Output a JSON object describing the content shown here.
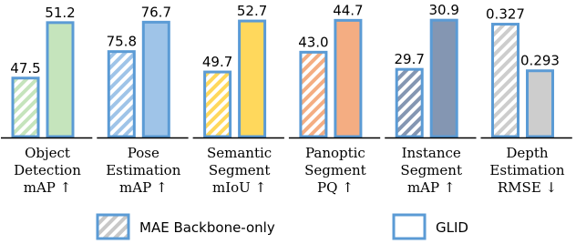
{
  "chart_data": [
    {
      "type": "bar",
      "title": [
        "Object",
        "Detection",
        "mAP ↑"
      ],
      "values": [
        47.5,
        51.2
      ],
      "value_labels": [
        "47.5",
        "51.2"
      ],
      "color": "#c5e4bc",
      "ylim": [
        43.6,
        52.1
      ]
    },
    {
      "type": "bar",
      "title": [
        "Pose",
        "Estimation",
        "mAP ↑"
      ],
      "values": [
        75.8,
        76.7
      ],
      "value_labels": [
        "75.8",
        "76.7"
      ],
      "color": "#9fc4e8",
      "ylim": [
        73.2,
        77.1
      ]
    },
    {
      "type": "bar",
      "title": [
        "Semantic",
        "Segment",
        "mIoU ↑"
      ],
      "values": [
        49.7,
        52.7
      ],
      "value_labels": [
        "49.7",
        "52.7"
      ],
      "color": "#ffd85c",
      "ylim": [
        45.9,
        53.4
      ]
    },
    {
      "type": "bar",
      "title": [
        "Panoptic",
        "Segment",
        "PQ ↑"
      ],
      "values": [
        43.0,
        44.7
      ],
      "value_labels": [
        "43.0",
        "44.7"
      ],
      "color": "#f4ad82",
      "ylim": [
        38.5,
        45.3
      ]
    },
    {
      "type": "bar",
      "title": [
        "Instance",
        "Segment",
        "mAP ↑"
      ],
      "values": [
        29.7,
        30.9
      ],
      "value_labels": [
        "29.7",
        "30.9"
      ],
      "color": "#8496b2",
      "ylim": [
        28.06,
        31.17
      ]
    },
    {
      "type": "bar",
      "title": [
        "Depth",
        "Estimation",
        "RMSE ↓"
      ],
      "values": [
        0.327,
        0.293
      ],
      "value_labels": [
        "0.327",
        "0.293"
      ],
      "color": "#cdcdcd",
      "ylim": [
        0.245,
        0.338
      ]
    }
  ],
  "legend": [
    "MAE Backbone-only",
    "GLID"
  ]
}
